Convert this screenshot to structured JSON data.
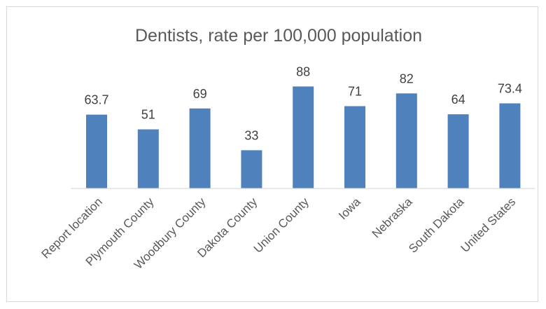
{
  "chart_data": {
    "type": "bar",
    "title": "Dentists, rate per 100,000 population",
    "xlabel": "",
    "ylabel": "",
    "categories": [
      "Report location",
      "Plymouth County",
      "Woodbury County",
      "Dakota County",
      "Union County",
      "Iowa",
      "Nebraska",
      "South Dakota",
      "United States"
    ],
    "values": [
      63.7,
      51,
      69,
      33,
      88,
      71,
      82,
      64,
      73.4
    ],
    "value_labels": [
      "63.7",
      "51",
      "69",
      "33",
      "88",
      "71",
      "82",
      "64",
      "73.4"
    ],
    "ylim": [
      0,
      100
    ],
    "grid": false,
    "legend": "none",
    "bar_color": "#4f81bd"
  }
}
